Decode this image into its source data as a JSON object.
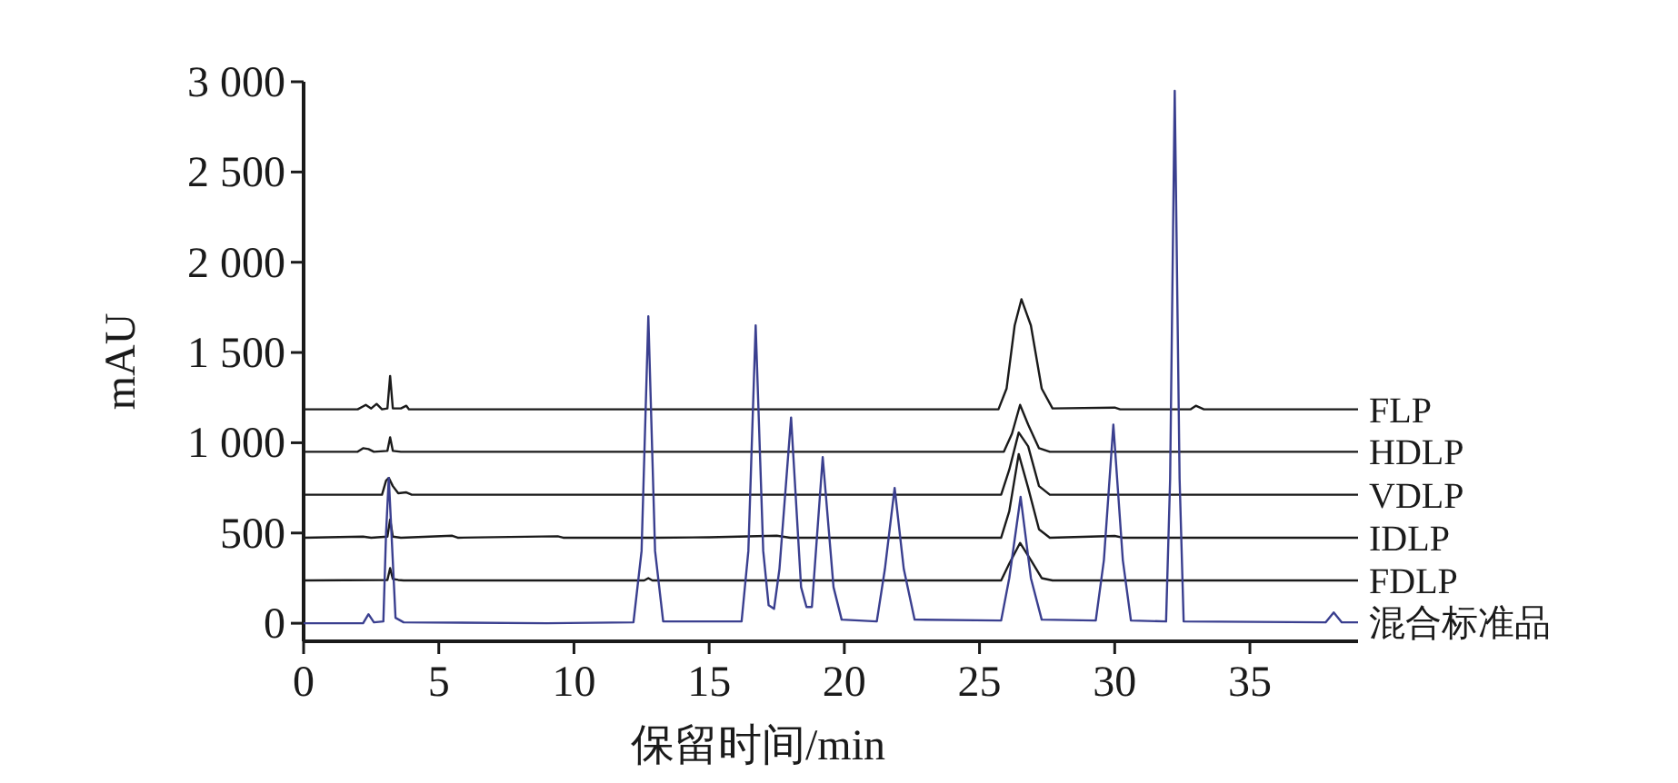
{
  "chart_data": {
    "type": "line",
    "xlabel": "保留时间/min",
    "ylabel": "mAU",
    "xlim": [
      0,
      39
    ],
    "ylim": [
      -100,
      3000
    ],
    "xticks": [
      0,
      5,
      10,
      15,
      20,
      25,
      30,
      35
    ],
    "yticks": [
      0,
      500,
      {
        "value": 1000,
        "label": "1 000"
      },
      {
        "value": 1500,
        "label": "1 500"
      },
      {
        "value": 2000,
        "label": "2 000"
      },
      {
        "value": 2500,
        "label": "2 500"
      },
      {
        "value": 3000,
        "label": "3 000"
      }
    ],
    "series": [
      {
        "name": "FLP",
        "color": "#1a1a1a",
        "x": [
          0,
          2.0,
          2.3,
          2.5,
          2.7,
          2.9,
          3.1,
          3.2,
          3.3,
          3.6,
          3.8,
          3.9,
          25.7,
          26.0,
          26.3,
          26.55,
          26.9,
          27.3,
          27.7,
          30,
          30.2,
          32.8,
          33.0,
          33.3,
          39
        ],
        "values": [
          1185,
          1185,
          1210,
          1190,
          1215,
          1185,
          1190,
          1370,
          1190,
          1190,
          1205,
          1185,
          1185,
          1300,
          1650,
          1795,
          1650,
          1300,
          1190,
          1195,
          1185,
          1185,
          1205,
          1185,
          1185
        ]
      },
      {
        "name": "HDLP",
        "color": "#1a1a1a",
        "x": [
          0,
          2.0,
          2.2,
          2.4,
          2.6,
          3.1,
          3.2,
          3.3,
          3.6,
          25.9,
          26.2,
          26.5,
          26.8,
          27.2,
          27.6,
          39
        ],
        "values": [
          950,
          950,
          970,
          965,
          950,
          955,
          1030,
          955,
          950,
          950,
          1050,
          1210,
          1100,
          970,
          950,
          950
        ]
      },
      {
        "name": "VDLP",
        "color": "#1a1a1a",
        "x": [
          0,
          2.9,
          3.05,
          3.15,
          3.3,
          3.5,
          3.8,
          4.0,
          25.8,
          26.1,
          26.45,
          26.8,
          27.2,
          27.6,
          39
        ],
        "values": [
          712,
          712,
          790,
          805,
          760,
          720,
          725,
          712,
          712,
          850,
          1057,
          980,
          760,
          712,
          712
        ]
      },
      {
        "name": "IDLP",
        "color": "#1a1a1a",
        "x": [
          0,
          2.2,
          2.5,
          3.1,
          3.2,
          3.3,
          3.6,
          5.5,
          5.7,
          9.4,
          9.6,
          13,
          15,
          17.5,
          18,
          25.8,
          26.1,
          26.45,
          26.8,
          27.2,
          27.6,
          30,
          30.3,
          39
        ],
        "values": [
          474,
          480,
          474,
          480,
          575,
          480,
          474,
          485,
          474,
          482,
          474,
          474,
          476,
          485,
          474,
          474,
          620,
          937,
          750,
          520,
          474,
          484,
          474,
          474
        ]
      },
      {
        "name": "FDLP",
        "color": "#1a1a1a",
        "x": [
          0,
          3.1,
          3.2,
          3.3,
          3.5,
          3.7,
          12.6,
          12.75,
          12.9,
          25.8,
          26.1,
          26.5,
          26.9,
          27.3,
          27.7,
          39
        ],
        "values": [
          237,
          240,
          305,
          245,
          240,
          237,
          237,
          250,
          237,
          237,
          330,
          445,
          350,
          250,
          237,
          237
        ]
      },
      {
        "name": "混合标准品",
        "color": "#3a3f8f",
        "x": [
          0,
          2.2,
          2.4,
          2.6,
          2.95,
          3.05,
          3.15,
          3.25,
          3.4,
          3.7,
          9,
          12.2,
          12.5,
          12.75,
          13.0,
          13.3,
          16.2,
          16.45,
          16.72,
          17.0,
          17.2,
          17.4,
          17.6,
          18.03,
          18.4,
          18.6,
          18.8,
          19.2,
          19.6,
          19.9,
          21.2,
          21.5,
          21.86,
          22.2,
          22.6,
          25.8,
          26.1,
          26.52,
          26.9,
          27.3,
          29.3,
          29.6,
          29.95,
          30.3,
          30.6,
          31.9,
          32.05,
          32.22,
          32.4,
          32.55,
          37.8,
          38.1,
          38.4,
          39
        ],
        "values": [
          0,
          0,
          50,
          5,
          10,
          500,
          805,
          500,
          30,
          5,
          0,
          5,
          400,
          1700,
          400,
          10,
          10,
          400,
          1650,
          400,
          100,
          80,
          300,
          1140,
          200,
          90,
          90,
          920,
          200,
          20,
          10,
          300,
          750,
          300,
          20,
          15,
          250,
          700,
          250,
          20,
          15,
          350,
          1100,
          350,
          15,
          10,
          800,
          2950,
          800,
          10,
          5,
          60,
          5,
          5
        ]
      }
    ]
  }
}
